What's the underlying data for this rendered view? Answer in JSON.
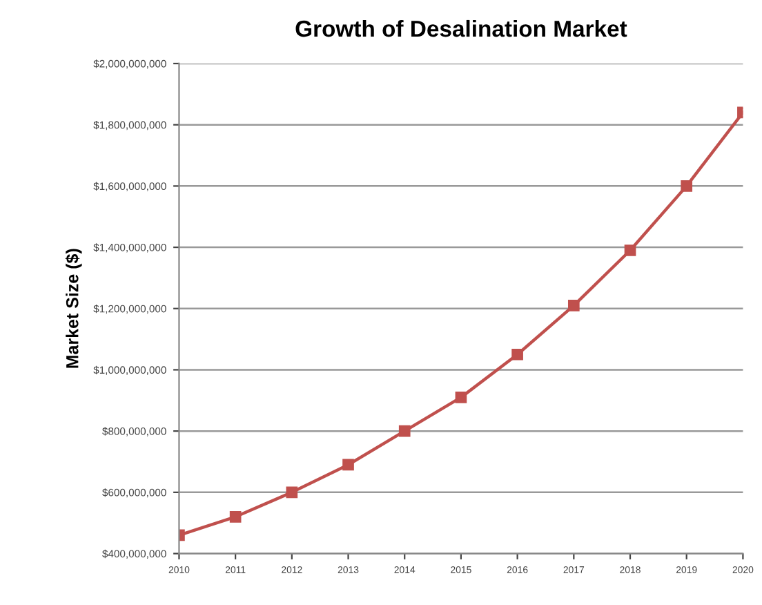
{
  "chart_data": {
    "type": "line",
    "title": "Growth of Desalination Market",
    "ylabel": "Market Size ($)",
    "categories": [
      "2010",
      "2011",
      "2012",
      "2013",
      "2014",
      "2015",
      "2016",
      "2017",
      "2018",
      "2019",
      "2020"
    ],
    "series": [
      {
        "color": "#c0504d",
        "values": [
          460000000,
          520000000,
          600000000,
          690000000,
          800000000,
          910000000,
          1050000000,
          1210000000,
          1390000000,
          1600000000,
          1840000000
        ]
      }
    ],
    "ylim": [
      400000000,
      2000000000
    ],
    "yticks": [
      {
        "value": 400000000,
        "label": "$400,000,000"
      },
      {
        "value": 600000000,
        "label": "$600,000,000"
      },
      {
        "value": 800000000,
        "label": "$800,000,000"
      },
      {
        "value": 1000000000,
        "label": "$1,000,000,000"
      },
      {
        "value": 1200000000,
        "label": "$1,200,000,000"
      },
      {
        "value": 1400000000,
        "label": "$1,400,000,000"
      },
      {
        "value": 1600000000,
        "label": "$1,600,000,000"
      },
      {
        "value": 1800000000,
        "label": "$1,800,000,000"
      },
      {
        "value": 2000000000,
        "label": "$2,000,000,000"
      }
    ],
    "grid": "y",
    "marker": "square",
    "line_style": "solid"
  }
}
